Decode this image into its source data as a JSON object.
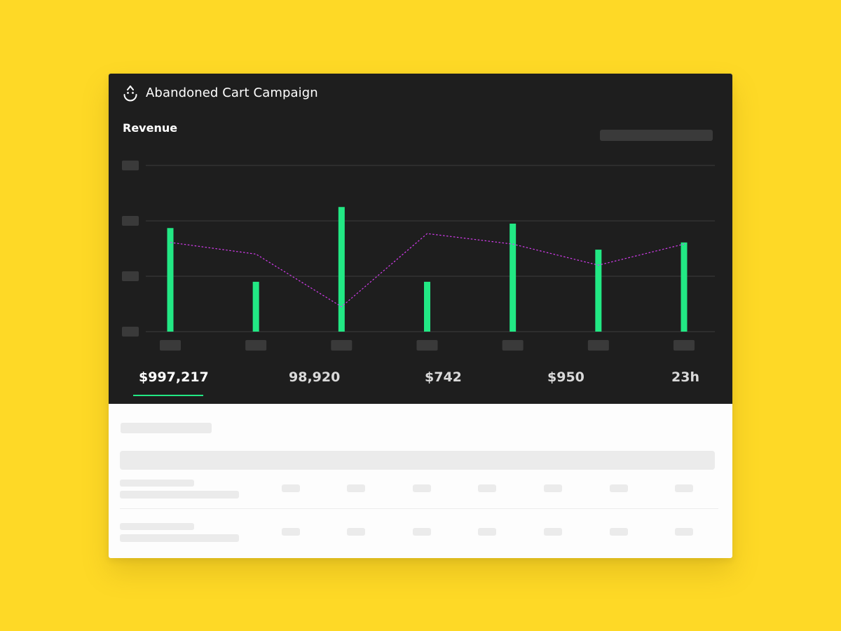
{
  "header": {
    "title": "Abandoned Cart Campaign",
    "logo_icon": "drop-smile-icon"
  },
  "chart_section": {
    "label": "Revenue"
  },
  "colors": {
    "background": "#FED926",
    "panel": "#1E1E1E",
    "bar": "#22E884",
    "line": "#D63CF0",
    "placeholder_dark": "#3A3A3A",
    "placeholder_light": "#EBEBEB"
  },
  "chart_data": {
    "type": "bar",
    "title": "Revenue",
    "categories": [
      "",
      "",
      "",
      "",
      "",
      "",
      ""
    ],
    "ylim": [
      0,
      3
    ],
    "grid": true,
    "series": [
      {
        "type": "bar",
        "values": [
          1.87,
          0.9,
          2.25,
          0.9,
          1.95,
          1.48,
          1.61
        ]
      },
      {
        "type": "line",
        "style": "dotted",
        "values": [
          1.61,
          1.4,
          0.45,
          1.77,
          1.58,
          1.2,
          1.58
        ]
      }
    ]
  },
  "metrics": [
    {
      "value": "$997,217",
      "active": true
    },
    {
      "value": "98,920",
      "active": false
    },
    {
      "value": "$742",
      "active": false
    },
    {
      "value": "$950",
      "active": false
    },
    {
      "value": "23h",
      "active": false
    }
  ]
}
